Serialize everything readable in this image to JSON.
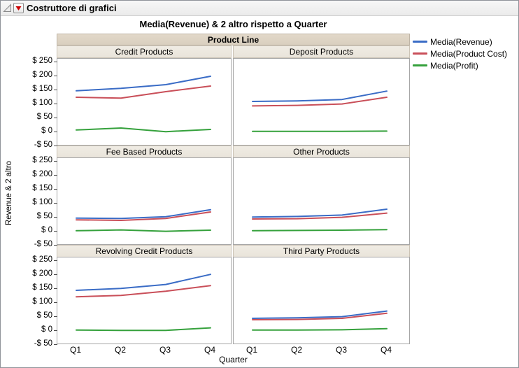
{
  "window": {
    "title": "Costruttore di grafici"
  },
  "legend": [
    {
      "label": "Media(Revenue)",
      "color": "#3a6cc6"
    },
    {
      "label": "Media(Product Cost)",
      "color": "#c94f59"
    },
    {
      "label": "Media(Profit)",
      "color": "#35a13c"
    }
  ],
  "chart_data": {
    "type": "line",
    "title": "Media(Revenue) & 2 altro rispetto a Quarter",
    "xlabel": "Quarter",
    "ylabel": "Revenue & 2 altro",
    "group_label": "Product Line",
    "x": [
      "Q1",
      "Q2",
      "Q3",
      "Q4"
    ],
    "ylim": [
      -50,
      250
    ],
    "y_ticks": [
      250,
      200,
      150,
      100,
      50,
      0,
      -50
    ],
    "y_tick_labels": [
      "$ 250",
      "$ 200",
      "$ 150",
      "$ 100",
      "$ 50",
      "$ 0",
      "-$ 50"
    ],
    "grid": false,
    "legend_position": "right",
    "series_names": [
      "Media(Revenue)",
      "Media(Product Cost)",
      "Media(Profit)"
    ],
    "panels": [
      {
        "name": "Credit Products",
        "series": [
          {
            "name": "Media(Revenue)",
            "values": [
              148,
              157,
              170,
              200
            ]
          },
          {
            "name": "Media(Product Cost)",
            "values": [
              125,
              122,
              145,
              165
            ]
          },
          {
            "name": "Media(Profit)",
            "values": [
              8,
              15,
              2,
              10
            ]
          }
        ]
      },
      {
        "name": "Deposit Products",
        "series": [
          {
            "name": "Media(Revenue)",
            "values": [
              110,
              112,
              117,
              147
            ]
          },
          {
            "name": "Media(Product Cost)",
            "values": [
              94,
              96,
              101,
              125
            ]
          },
          {
            "name": "Media(Profit)",
            "values": [
              3,
              3,
              3,
              4
            ]
          }
        ]
      },
      {
        "name": "Fee Based Products",
        "series": [
          {
            "name": "Media(Revenue)",
            "values": [
              48,
              47,
              53,
              78
            ]
          },
          {
            "name": "Media(Product Cost)",
            "values": [
              42,
              40,
              47,
              70
            ]
          },
          {
            "name": "Media(Profit)",
            "values": [
              3,
              6,
              1,
              5
            ]
          }
        ]
      },
      {
        "name": "Other Products",
        "series": [
          {
            "name": "Media(Revenue)",
            "values": [
              52,
              54,
              59,
              80
            ]
          },
          {
            "name": "Media(Product Cost)",
            "values": [
              45,
              46,
              51,
              66
            ]
          },
          {
            "name": "Media(Profit)",
            "values": [
              3,
              4,
              5,
              7
            ]
          }
        ]
      },
      {
        "name": "Revolving Credit Products",
        "series": [
          {
            "name": "Media(Revenue)",
            "values": [
              145,
              152,
              166,
              202
            ]
          },
          {
            "name": "Media(Product Cost)",
            "values": [
              122,
              127,
              142,
              162
            ]
          },
          {
            "name": "Media(Profit)",
            "values": [
              3,
              2,
              2,
              11
            ]
          }
        ]
      },
      {
        "name": "Third Party Products",
        "series": [
          {
            "name": "Media(Revenue)",
            "values": [
              45,
              47,
              51,
              71
            ]
          },
          {
            "name": "Media(Product Cost)",
            "values": [
              40,
              41,
              45,
              63
            ]
          },
          {
            "name": "Media(Profit)",
            "values": [
              3,
              3,
              4,
              8
            ]
          }
        ]
      }
    ]
  }
}
